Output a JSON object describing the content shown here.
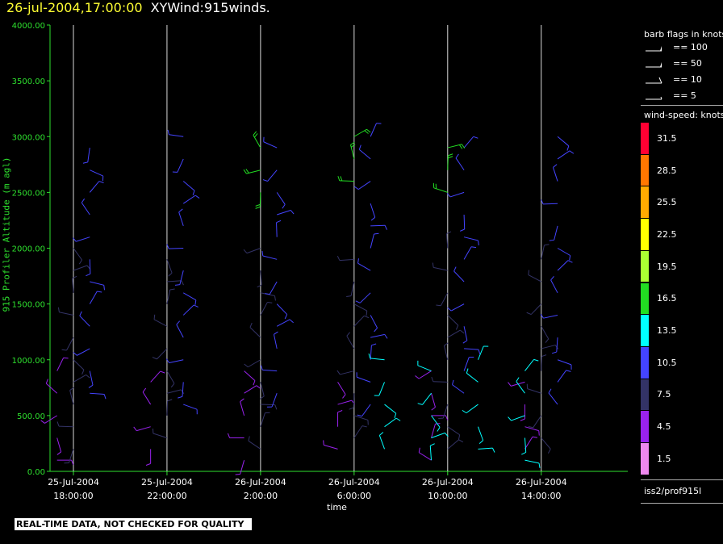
{
  "header": {
    "timestamp": "26-jul-2004,17:00:00",
    "title": "XYWind:915winds."
  },
  "chart_data": {
    "type": "scatter",
    "subtype": "wind-barb time-height plot",
    "xlabel": "time",
    "ylabel": "915 Profiler Altitude (m agl)",
    "ylim": [
      0,
      4000
    ],
    "yticks": [
      "4000.00",
      "3500.00",
      "3000.00",
      "2500.00",
      "2000.00",
      "1500.00",
      "1000.00",
      "500.00",
      "0.00"
    ],
    "ytick_values": [
      4000,
      3500,
      3000,
      2500,
      2000,
      1500,
      1000,
      500,
      0
    ],
    "xticks": [
      {
        "date": "25-Jul-2004",
        "time": "18:00:00"
      },
      {
        "date": "25-Jul-2004",
        "time": "22:00:00"
      },
      {
        "date": "26-Jul-2004",
        "time": "2:00:00"
      },
      {
        "date": "26-Jul-2004",
        "time": "6:00:00"
      },
      {
        "date": "26-Jul-2004",
        "time": "10:00:00"
      },
      {
        "date": "26-Jul-2004",
        "time": "14:00:00"
      }
    ],
    "xtick_hours": [
      0,
      4,
      8,
      12,
      16,
      20
    ],
    "xlim_hours": [
      -1,
      23.7
    ],
    "grid": "vertical lines at x ticks",
    "legend_placement": "right",
    "barb_legend": {
      "title": "barb flags in knots",
      "entries": [
        {
          "label": "== 100",
          "value": 100
        },
        {
          "label": "== 50",
          "value": 50
        },
        {
          "label": "== 10",
          "value": 10
        },
        {
          "label": "== 5",
          "value": 5
        }
      ]
    },
    "color_scale": {
      "title": "wind-speed: knots",
      "labels": [
        "31.5",
        "28.5",
        "25.5",
        "22.5",
        "19.5",
        "16.5",
        "13.5",
        "10.5",
        "7.5",
        "4.5",
        "1.5"
      ],
      "colors": [
        "#ff0033",
        "#ff7700",
        "#ffaa00",
        "#ffff00",
        "#aaff33",
        "#22dd22",
        "#00ffff",
        "#4444ff",
        "#333366",
        "#9922ee",
        "#ee88ee"
      ]
    },
    "altitude_levels_m": [
      100,
      200,
      300,
      400,
      500,
      600,
      700,
      800,
      900,
      1000,
      1100,
      1200,
      1300,
      1400,
      1500,
      1600,
      1700,
      1800,
      1900,
      2000,
      2100,
      2200,
      2300,
      2400,
      2500,
      2600,
      2700,
      2800,
      2900,
      3000
    ],
    "series": [
      {
        "speed_band": "4.5",
        "hours": [
          0,
          4,
          8,
          12,
          16,
          20
        ],
        "alt_range_m": [
          100,
          900
        ]
      },
      {
        "speed_band": "7.5",
        "hours": [
          0,
          4,
          8,
          12,
          16,
          20
        ],
        "alt_range_m": [
          200,
          2000
        ]
      },
      {
        "speed_band": "10.5",
        "hours": [
          0,
          4,
          8,
          12,
          16,
          20
        ],
        "alt_range_m": [
          600,
          3000
        ]
      },
      {
        "speed_band": "13.5",
        "hours": [
          14,
          16,
          18,
          20
        ],
        "alt_range_m": [
          100,
          1000
        ]
      },
      {
        "speed_band": "16.5",
        "hours": [
          8,
          12,
          16
        ],
        "alt_range_m": [
          2500,
          3200
        ]
      }
    ],
    "source": "iss2/prof915l"
  },
  "footer": {
    "warning": "REAL-TIME DATA, NOT CHECKED FOR QUALITY"
  },
  "colors": {
    "axis": "#2ee02e",
    "grid": "#ffffff",
    "timestamp": "#ffff33"
  }
}
